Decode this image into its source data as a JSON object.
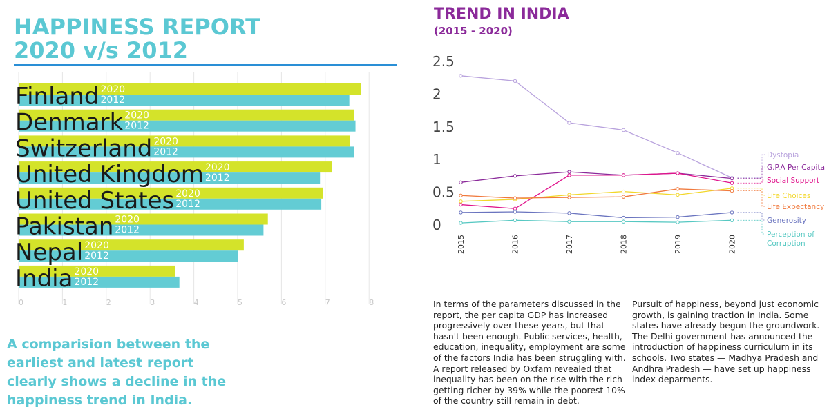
{
  "left": {
    "title_line1": "HAPPINESS REPORT",
    "title_line2": "2020 v/s 2012",
    "caption": "A comparision between the earliest and latest report clearly shows a decline in the happiness trend in India."
  },
  "right": {
    "title": "TREND IN INDIA",
    "subtitle": "(2015 - 2020)",
    "paragraph1": "In terms of the parameters discussed in the report, the per capita GDP has increased progressively over these years, but that hasn't been enough. Public services, health, education, inequality, employment are some of the factors India has been struggling with. A report released by Oxfam revealed that inequality has been on the rise with the rich getting richer by 39% while the poorest 10% of the country still remain in debt.",
    "paragraph2": "Pursuit of happiness, beyond just economic growth, is gaining traction in India. Some states have already begun the groundwork. The Delhi government has announced the introduction of happiness curriculum in its schools. Two states — Madhya Pradesh and Andhra Pradesh — have set up happiness index deparments."
  },
  "chart_data": [
    {
      "type": "bar",
      "orientation": "horizontal",
      "categories": [
        "Finland",
        "Denmark",
        "Switzerland",
        "United Kingdom",
        "United States",
        "Pakistan",
        "Nepal",
        "India"
      ],
      "series": [
        {
          "name": "2020",
          "color": "#d4e32a",
          "values": [
            7.81,
            7.65,
            7.56,
            7.16,
            6.94,
            5.69,
            5.14,
            3.57
          ]
        },
        {
          "name": "2012",
          "color": "#63ccd4",
          "values": [
            7.55,
            7.69,
            7.65,
            6.88,
            6.91,
            5.59,
            5.0,
            3.67
          ]
        }
      ],
      "xlim": [
        0,
        8
      ],
      "xticks": [
        "0",
        "1",
        "2",
        "3",
        "4",
        "5",
        "6",
        "7",
        "8"
      ],
      "grid": true
    },
    {
      "type": "line",
      "x": [
        "2015",
        "2016",
        "2017",
        "2018",
        "2019",
        "2020"
      ],
      "ylim": [
        0,
        2.5
      ],
      "yticks": [
        "0",
        "0.5",
        "1",
        "1.5",
        "2",
        "2.5"
      ],
      "legend_position": "right",
      "series": [
        {
          "name": "Dystopia",
          "color": "#b8a2dd",
          "values": [
            2.27,
            2.19,
            1.55,
            1.44,
            1.09,
            0.71
          ]
        },
        {
          "name": "G.P.A Per Capita",
          "color": "#8b2a9a",
          "values": [
            0.64,
            0.74,
            0.8,
            0.75,
            0.78,
            0.7
          ]
        },
        {
          "name": "Social Support",
          "color": "#e0148c",
          "values": [
            0.3,
            0.24,
            0.75,
            0.75,
            0.78,
            0.63
          ]
        },
        {
          "name": "Life Choices",
          "color": "#f2d72a",
          "values": [
            0.35,
            0.38,
            0.45,
            0.5,
            0.45,
            0.55
          ]
        },
        {
          "name": "Life Expectancy",
          "color": "#f07a3e",
          "values": [
            0.44,
            0.4,
            0.41,
            0.42,
            0.54,
            0.51
          ]
        },
        {
          "name": "Generosity",
          "color": "#6a74bf",
          "values": [
            0.18,
            0.19,
            0.17,
            0.1,
            0.11,
            0.18
          ]
        },
        {
          "name": "Perception of Corruption",
          "color": "#56c8c2",
          "values": [
            0.02,
            0.06,
            0.04,
            0.04,
            0.03,
            0.06
          ]
        }
      ]
    }
  ]
}
